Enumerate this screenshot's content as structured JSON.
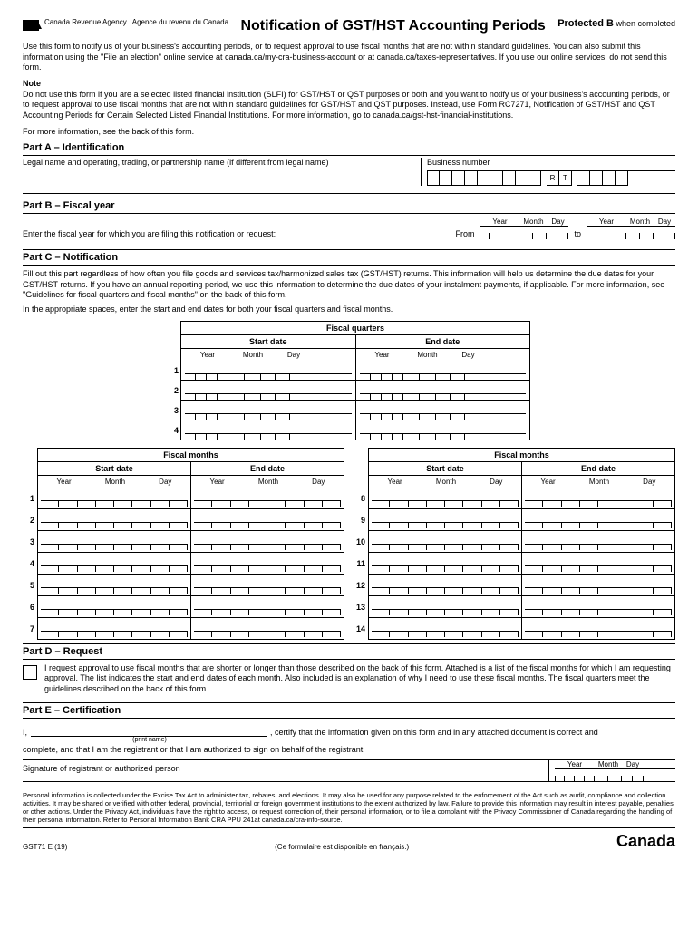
{
  "header": {
    "agency_en": "Canada Revenue\nAgency",
    "agency_fr": "Agence du revenu\ndu Canada",
    "title": "Notification of GST/HST Accounting Periods",
    "protected": "Protected B",
    "protected_sub": "when completed"
  },
  "intro": "Use this form to notify us of your business's accounting periods, or to request approval to use fiscal months that are not within standard guidelines. You can also submit this information using the \"File an election\" online service at canada.ca/my-cra-business-account or at canada.ca/taxes-representatives. If you use our online services, do not send this form.",
  "note": {
    "heading": "Note",
    "body": "Do not use this form if you are a selected listed financial institution (SLFI) for GST/HST or QST purposes or both and you want to notify us of your business's accounting periods, or to request approval to use fiscal months that are not within standard guidelines for GST/HST and QST purposes. Instead, use Form RC7271, Notification of GST/HST and QST Accounting Periods for Certain Selected Listed Financial Institutions. For more information, go to canada.ca/gst-hst-financial-institutions."
  },
  "more_info": "For more information, see the back of this form.",
  "partA": {
    "title": "Part A – Identification",
    "legal_name": "Legal name and operating, trading, or partnership name (if different from legal name)",
    "bn_label": "Business number",
    "rt1": "R",
    "rt2": "T"
  },
  "partB": {
    "title": "Part B – Fiscal year",
    "label": "Enter the fiscal year for which you are filing this notification or request:",
    "from": "From",
    "to": "to",
    "year": "Year",
    "month": "Month",
    "day": "Day"
  },
  "partC": {
    "title": "Part C – Notification",
    "p1": "Fill out this part regardless of how often you file goods and services tax/harmonized sales tax (GST/HST) returns. This information will help us determine the due dates for your GST/HST returns. If you have an annual reporting period, we use this information to determine the due dates of your instalment payments, if applicable. For more information, see \"Guidelines for fiscal quarters and fiscal months\" on the back of this form.",
    "p2": "In the appropriate spaces, enter the start and end dates for both your fiscal quarters and fiscal months.",
    "fq_title": "Fiscal quarters",
    "fm_title": "Fiscal months",
    "start": "Start date",
    "end": "End date",
    "year": "Year",
    "month": "Month",
    "day": "Day",
    "fq_rows": [
      "1",
      "2",
      "3",
      "4"
    ],
    "fm_left": [
      "1",
      "2",
      "3",
      "4",
      "5",
      "6",
      "7"
    ],
    "fm_right": [
      "8",
      "9",
      "10",
      "11",
      "12",
      "13",
      "14"
    ]
  },
  "partD": {
    "title": "Part D – Request",
    "text": "I request approval to use fiscal months that are shorter or longer than those described on the back of this form. Attached is a list of the fiscal months for which I am requesting approval. The list indicates the start and end dates of each month. Also included is an explanation of why I need to use these fiscal months. The fiscal quarters meet the guidelines described on the back of this form."
  },
  "partE": {
    "title": "Part E – Certification",
    "i": "I,",
    "print_name": "(print name)",
    "cert_mid": ", certify that the information given on this form and in any attached document is correct and",
    "cert_end": "complete, and that I am the registrant or that I am authorized to sign on behalf of the registrant.",
    "sig_label": "Signature of registrant or authorized person",
    "year": "Year",
    "month": "Month",
    "day": "Day"
  },
  "privacy": "Personal information is collected under the Excise Tax Act to administer tax, rebates, and elections. It may also be used for any purpose related to the enforcement of the Act such as audit, compliance and collection activities. It may be shared or verified with other federal, provincial, territorial or foreign government institutions to the extent authorized by law. Failure to provide this information may result in interest payable, penalties or other actions. Under the Privacy Act, individuals have the right to access, or request correction of, their personal information, or to file a complaint with the Privacy Commissioner of Canada regarding the handling of their personal information. Refer to Personal Information Bank CRA PPU 241at canada.ca/cra-info-source.",
  "footer": {
    "form_num": "GST71 E (19)",
    "french": "(Ce formulaire est disponible en français.)",
    "canada": "Canada"
  }
}
